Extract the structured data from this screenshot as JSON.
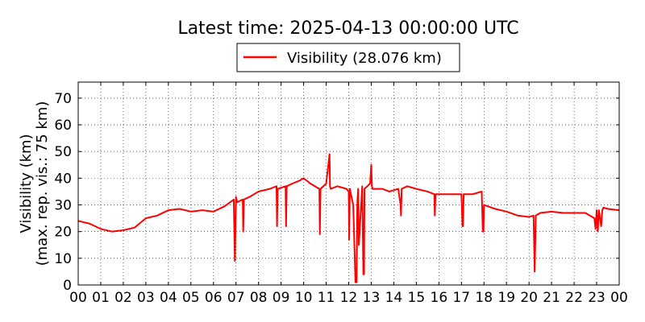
{
  "chart_data": {
    "type": "line",
    "title": "Latest time: 2025-04-13 00:00:00 UTC",
    "ylabel_lines": [
      "Visibility (km)",
      "(max. rep. vis.: 75 km)"
    ],
    "xlabel": "",
    "xlim": [
      0,
      24
    ],
    "ylim": [
      0,
      76
    ],
    "x_ticks": [
      0,
      1,
      2,
      3,
      4,
      5,
      6,
      7,
      8,
      9,
      10,
      11,
      12,
      13,
      14,
      15,
      16,
      17,
      18,
      19,
      20,
      21,
      22,
      23,
      24
    ],
    "x_tick_labels": [
      "00",
      "01",
      "02",
      "03",
      "04",
      "05",
      "06",
      "07",
      "08",
      "09",
      "10",
      "11",
      "12",
      "13",
      "14",
      "15",
      "16",
      "17",
      "18",
      "19",
      "20",
      "21",
      "22",
      "23",
      "00"
    ],
    "y_ticks": [
      0,
      10,
      20,
      30,
      40,
      50,
      60,
      70
    ],
    "y_tick_labels": [
      "0",
      "10",
      "20",
      "30",
      "40",
      "50",
      "60",
      "70"
    ],
    "grid": true,
    "legend_position": "top-center",
    "series": [
      {
        "name": "Visibility (28.076 km)",
        "color": "#ff0000",
        "x": [
          0.0,
          0.5,
          1.0,
          1.5,
          2.0,
          2.5,
          3.0,
          3.5,
          4.0,
          4.5,
          5.0,
          5.5,
          6.0,
          6.5,
          6.9,
          6.95,
          7.0,
          7.05,
          7.3,
          7.32,
          7.35,
          7.6,
          8.0,
          8.5,
          8.8,
          8.82,
          8.85,
          9.2,
          9.22,
          9.25,
          9.5,
          9.8,
          10.0,
          10.3,
          10.7,
          10.72,
          10.75,
          11.0,
          11.15,
          11.17,
          11.2,
          11.5,
          11.9,
          12.0,
          12.02,
          12.05,
          12.2,
          12.3,
          12.35,
          12.38,
          12.42,
          12.45,
          12.6,
          12.65,
          12.68,
          12.7,
          12.95,
          13.0,
          13.03,
          13.06,
          13.5,
          13.8,
          14.2,
          14.3,
          14.32,
          14.35,
          14.6,
          15.0,
          15.5,
          15.8,
          15.82,
          15.85,
          16.0,
          16.5,
          17.0,
          17.05,
          17.07,
          17.1,
          17.5,
          17.9,
          17.95,
          17.98,
          18.0,
          18.5,
          19.0,
          19.5,
          20.0,
          20.2,
          20.25,
          20.3,
          20.5,
          21.0,
          21.5,
          22.0,
          22.5,
          22.9,
          22.95,
          23.0,
          23.05,
          23.1,
          23.2,
          23.25,
          23.3,
          23.5,
          24.0
        ],
        "y": [
          24.0,
          23.0,
          21.0,
          20.0,
          20.5,
          21.5,
          25.0,
          26.0,
          28.0,
          28.5,
          27.5,
          28.0,
          27.5,
          29.5,
          32.0,
          9.0,
          33.0,
          31.0,
          32.0,
          20.0,
          32.0,
          33.0,
          35.0,
          36.0,
          37.0,
          22.0,
          36.0,
          37.0,
          22.0,
          37.0,
          38.0,
          39.0,
          40.0,
          38.0,
          36.0,
          19.0,
          36.0,
          38.0,
          49.0,
          37.0,
          36.0,
          37.0,
          36.0,
          35.0,
          17.0,
          36.0,
          30.0,
          1.0,
          1.0,
          30.0,
          36.0,
          15.0,
          37.0,
          4.0,
          4.0,
          36.0,
          38.0,
          45.0,
          37.0,
          36.0,
          36.0,
          35.0,
          36.0,
          30.0,
          26.0,
          36.0,
          37.0,
          36.0,
          35.0,
          34.0,
          26.0,
          34.0,
          34.0,
          34.0,
          34.0,
          22.0,
          22.0,
          34.0,
          34.0,
          35.0,
          20.0,
          20.0,
          30.0,
          28.5,
          27.5,
          26.0,
          25.5,
          26.0,
          5.0,
          26.0,
          27.0,
          27.5,
          27.0,
          27.0,
          27.0,
          25.0,
          21.0,
          28.0,
          20.0,
          28.0,
          22.0,
          28.0,
          29.0,
          28.5,
          28.0
        ]
      }
    ]
  }
}
